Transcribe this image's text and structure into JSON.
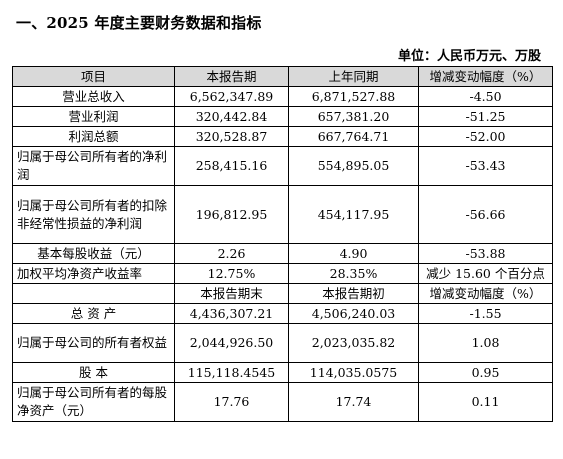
{
  "section_title": "一、2025 年度主要财务数据和指标",
  "unit": "单位：人民币万元、万股",
  "header1": [
    "项目",
    "本报告期",
    "上年同期",
    "增减变动幅度（%）"
  ],
  "rows1": [
    {
      "label": "营业总收入",
      "current": "6,562,347.89",
      "prior": "6,871,527.88",
      "change": "-4.50"
    },
    {
      "label": "营业利润",
      "current": "320,442.84",
      "prior": "657,381.20",
      "change": "-51.25"
    },
    {
      "label": "利润总额",
      "current": "320,528.87",
      "prior": "667,764.71",
      "change": "-52.00"
    },
    {
      "label": "归属于母公司所有者的净利润",
      "current": "258,415.16",
      "prior": "554,895.05",
      "change": "-53.43"
    },
    {
      "label": "归属于母公司所有者的扣除非经常性损益的净利润",
      "current": "196,812.95",
      "prior": "454,117.95",
      "change": "-56.66"
    },
    {
      "label": "基本每股收益（元）",
      "current": "2.26",
      "prior": "4.90",
      "change": "-53.88"
    },
    {
      "label": "加权平均净资产收益率",
      "current": "12.75%",
      "prior": "28.35%",
      "change": "减少 15.60 个百分点"
    }
  ],
  "header2": [
    "",
    "本报告期末",
    "本报告期初",
    "增减变动幅度（%）"
  ],
  "rows2": [
    {
      "label": "总 资 产",
      "current": "4,436,307.21",
      "prior": "4,506,240.03",
      "change": "-1.55"
    },
    {
      "label": "归属于母公司的所有者权益",
      "current": "2,044,926.50",
      "prior": "2,023,035.82",
      "change": "1.08"
    },
    {
      "label": "股 本",
      "current": "115,118.4545",
      "prior": "114,035.0575",
      "change": "0.95"
    },
    {
      "label": "归属于母公司所有者的每股净资产（元）",
      "current": "17.76",
      "prior": "17.74",
      "change": "0.11"
    }
  ]
}
